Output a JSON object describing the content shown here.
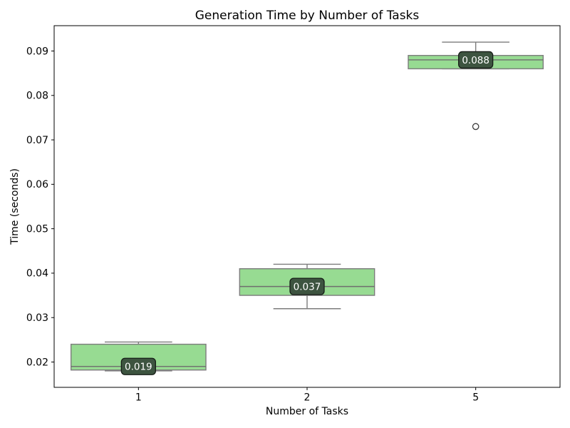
{
  "figure": {
    "background": "#ffffff"
  },
  "chart_data": {
    "type": "boxplot",
    "title": "Generation Time by Number of Tasks",
    "xlabel": "Number of Tasks",
    "ylabel": "Time (seconds)",
    "categories": [
      "1",
      "2",
      "5"
    ],
    "positions": [
      1,
      2,
      3
    ],
    "xlim": [
      0.5,
      3.5
    ],
    "ylim": [
      0.0143,
      0.0957
    ],
    "yticks": [
      0.02,
      0.03,
      0.04,
      0.05,
      0.06,
      0.07,
      0.08,
      0.09
    ],
    "box_width": 0.8,
    "cap_width": 0.4,
    "grid": false,
    "legend": false,
    "groups": [
      {
        "category": "1",
        "whislo": 0.018,
        "q1": 0.0182,
        "med": 0.019,
        "q3": 0.024,
        "whishi": 0.0245,
        "outliers": [],
        "median_label": "0.019"
      },
      {
        "category": "2",
        "whislo": 0.032,
        "q1": 0.035,
        "med": 0.037,
        "q3": 0.041,
        "whishi": 0.042,
        "outliers": [],
        "median_label": "0.037"
      },
      {
        "category": "5",
        "whislo": 0.086,
        "q1": 0.086,
        "med": 0.088,
        "q3": 0.089,
        "whishi": 0.092,
        "outliers": [
          0.073
        ],
        "median_label": "0.088"
      }
    ],
    "colors": {
      "box_fill": "#97db92",
      "box_edge": "#7c7c7c",
      "whisker": "#7c7c7c",
      "cap": "#7c7c7c",
      "median": "#6e6e6e",
      "outlier_edge": "#3c3c3c",
      "annotation_bg": "#3d5440",
      "annotation_border": "#161d17",
      "annotation_text": "#ffffff",
      "axis": "#000000",
      "text": "#000000"
    }
  }
}
